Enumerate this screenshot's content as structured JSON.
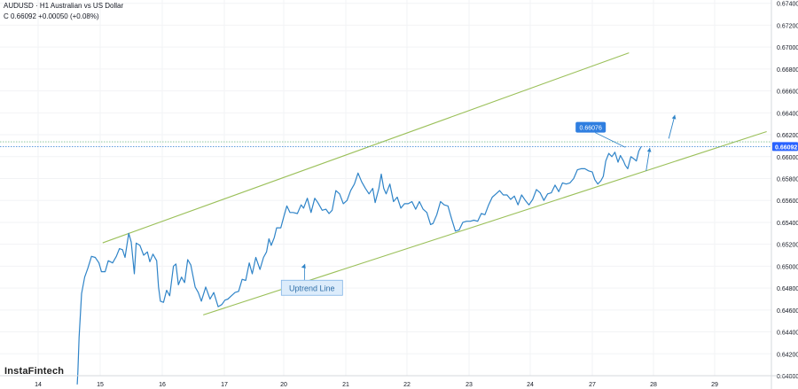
{
  "header": {
    "title": "AUDUSD · H1 Australian vs US Dollar",
    "ohlc": "C 0.66092 +0.00050 (+0.08%)"
  },
  "brand": {
    "name": "InstaFintech"
  },
  "colors": {
    "line": "#2f84c8",
    "channel": "#9bc05a",
    "price_badge": "#2962ff",
    "callout": "#2f7ee0",
    "annotation_fill": "#dcecfb",
    "annotation_border": "#7fb3e6",
    "grid": "#f2f3f5"
  },
  "chart_data": {
    "type": "line",
    "title": "AUDUSD · H1 Australian vs US Dollar",
    "xlabel": "",
    "ylabel": "",
    "x_ticks": [
      "14",
      "15",
      "16",
      "17",
      "20",
      "21",
      "22",
      "23",
      "24",
      "27",
      "28",
      "29"
    ],
    "x_index_range": [
      -0.5,
      11.5
    ],
    "y_ticks": [
      "0.64000",
      "0.64200",
      "0.64400",
      "0.64600",
      "0.64800",
      "0.65000",
      "0.65200",
      "0.65400",
      "0.65600",
      "0.65800",
      "0.66000",
      "0.66200",
      "0.66400",
      "0.66600",
      "0.66800",
      "0.67000",
      "0.67200",
      "0.67400"
    ],
    "ylim": [
      0.64,
      0.6743
    ],
    "grid": true,
    "last_price": "0.66092",
    "callout_price": "0.66076",
    "annotation": "Uptrend Line",
    "series": [
      {
        "values": [
          [
            0.63,
            0.6392
          ],
          [
            0.64,
            0.6403
          ],
          [
            0.66,
            0.6435
          ],
          [
            0.7,
            0.6475
          ],
          [
            0.75,
            0.649
          ],
          [
            0.8,
            0.6498
          ],
          [
            0.86,
            0.6509
          ],
          [
            0.92,
            0.6508
          ],
          [
            0.98,
            0.6503
          ],
          [
            1.02,
            0.6495
          ],
          [
            1.08,
            0.6495
          ],
          [
            1.13,
            0.6505
          ],
          [
            1.2,
            0.6503
          ],
          [
            1.26,
            0.6509
          ],
          [
            1.31,
            0.6516
          ],
          [
            1.36,
            0.6515
          ],
          [
            1.4,
            0.6508
          ],
          [
            1.43,
            0.6519
          ],
          [
            1.46,
            0.653
          ],
          [
            1.5,
            0.6522
          ],
          [
            1.55,
            0.6493
          ],
          [
            1.58,
            0.6521
          ],
          [
            1.64,
            0.6519
          ],
          [
            1.7,
            0.651
          ],
          [
            1.76,
            0.6513
          ],
          [
            1.8,
            0.6504
          ],
          [
            1.85,
            0.6511
          ],
          [
            1.91,
            0.6505
          ],
          [
            1.94,
            0.6481
          ],
          [
            1.97,
            0.6468
          ],
          [
            2.02,
            0.6467
          ],
          [
            2.07,
            0.6478
          ],
          [
            2.12,
            0.6473
          ],
          [
            2.18,
            0.65
          ],
          [
            2.22,
            0.6502
          ],
          [
            2.26,
            0.6483
          ],
          [
            2.31,
            0.649
          ],
          [
            2.36,
            0.6485
          ],
          [
            2.41,
            0.6506
          ],
          [
            2.46,
            0.6501
          ],
          [
            2.53,
            0.6481
          ],
          [
            2.58,
            0.6476
          ],
          [
            2.63,
            0.6468
          ],
          [
            2.7,
            0.6481
          ],
          [
            2.77,
            0.647
          ],
          [
            2.83,
            0.6476
          ],
          [
            2.9,
            0.6463
          ],
          [
            2.96,
            0.6465
          ],
          [
            3.01,
            0.6469
          ],
          [
            3.06,
            0.647
          ],
          [
            3.12,
            0.6473
          ],
          [
            3.18,
            0.6476
          ],
          [
            3.24,
            0.6477
          ],
          [
            3.3,
            0.6488
          ],
          [
            3.36,
            0.6487
          ],
          [
            3.42,
            0.6503
          ],
          [
            3.47,
            0.6493
          ],
          [
            3.53,
            0.6508
          ],
          [
            3.6,
            0.6497
          ],
          [
            3.66,
            0.6508
          ],
          [
            3.71,
            0.6513
          ],
          [
            3.75,
            0.6525
          ],
          [
            3.79,
            0.6519
          ],
          [
            3.84,
            0.6526
          ],
          [
            3.88,
            0.6535
          ],
          [
            3.95,
            0.6535
          ],
          [
            4.0,
            0.6545
          ],
          [
            4.05,
            0.6555
          ],
          [
            4.1,
            0.6549
          ],
          [
            4.15,
            0.6549
          ],
          [
            4.22,
            0.6548
          ],
          [
            4.28,
            0.6556
          ],
          [
            4.32,
            0.6553
          ],
          [
            4.38,
            0.6562
          ],
          [
            4.44,
            0.6549
          ],
          [
            4.5,
            0.6562
          ],
          [
            4.55,
            0.6558
          ],
          [
            4.62,
            0.6551
          ],
          [
            4.68,
            0.6552
          ],
          [
            4.73,
            0.6548
          ],
          [
            4.78,
            0.6551
          ],
          [
            4.84,
            0.6569
          ],
          [
            4.9,
            0.6566
          ],
          [
            4.96,
            0.6557
          ],
          [
            5.02,
            0.656
          ],
          [
            5.08,
            0.6569
          ],
          [
            5.14,
            0.6575
          ],
          [
            5.2,
            0.6585
          ],
          [
            5.26,
            0.6577
          ],
          [
            5.32,
            0.6571
          ],
          [
            5.38,
            0.6566
          ],
          [
            5.44,
            0.6571
          ],
          [
            5.48,
            0.6558
          ],
          [
            5.54,
            0.6571
          ],
          [
            5.58,
            0.6584
          ],
          [
            5.62,
            0.6571
          ],
          [
            5.66,
            0.6566
          ],
          [
            5.72,
            0.6575
          ],
          [
            5.78,
            0.6559
          ],
          [
            5.84,
            0.6563
          ],
          [
            5.9,
            0.6553
          ],
          [
            5.96,
            0.6557
          ],
          [
            6.02,
            0.6557
          ],
          [
            6.08,
            0.6559
          ],
          [
            6.14,
            0.6552
          ],
          [
            6.2,
            0.6559
          ],
          [
            6.26,
            0.6552
          ],
          [
            6.32,
            0.6549
          ],
          [
            6.38,
            0.6538
          ],
          [
            6.42,
            0.6539
          ],
          [
            6.48,
            0.6547
          ],
          [
            6.54,
            0.6559
          ],
          [
            6.6,
            0.6556
          ],
          [
            6.66,
            0.6555
          ],
          [
            6.72,
            0.6543
          ],
          [
            6.78,
            0.6532
          ],
          [
            6.84,
            0.6533
          ],
          [
            6.9,
            0.654
          ],
          [
            6.96,
            0.6541
          ],
          [
            7.02,
            0.6541
          ],
          [
            7.08,
            0.6542
          ],
          [
            7.14,
            0.6541
          ],
          [
            7.2,
            0.6548
          ],
          [
            7.26,
            0.6547
          ],
          [
            7.32,
            0.6556
          ],
          [
            7.38,
            0.6563
          ],
          [
            7.44,
            0.6566
          ],
          [
            7.5,
            0.6569
          ],
          [
            7.56,
            0.6565
          ],
          [
            7.62,
            0.6565
          ],
          [
            7.68,
            0.6561
          ],
          [
            7.74,
            0.6564
          ],
          [
            7.8,
            0.6556
          ],
          [
            7.86,
            0.6565
          ],
          [
            7.92,
            0.656
          ],
          [
            7.98,
            0.6556
          ],
          [
            8.04,
            0.6561
          ],
          [
            8.1,
            0.657
          ],
          [
            8.16,
            0.6567
          ],
          [
            8.22,
            0.656
          ],
          [
            8.28,
            0.6566
          ],
          [
            8.34,
            0.6567
          ],
          [
            8.4,
            0.6574
          ],
          [
            8.46,
            0.6568
          ],
          [
            8.52,
            0.6576
          ],
          [
            8.58,
            0.6575
          ],
          [
            8.64,
            0.6576
          ],
          [
            8.7,
            0.658
          ],
          [
            8.76,
            0.6588
          ],
          [
            8.82,
            0.6589
          ],
          [
            8.88,
            0.6589
          ],
          [
            8.94,
            0.6587
          ],
          [
            9.0,
            0.6586
          ],
          [
            9.04,
            0.6579
          ],
          [
            9.09,
            0.6575
          ],
          [
            9.14,
            0.6578
          ],
          [
            9.18,
            0.6582
          ],
          [
            9.22,
            0.6596
          ],
          [
            9.27,
            0.6603
          ],
          [
            9.32,
            0.66
          ],
          [
            9.37,
            0.6604
          ],
          [
            9.42,
            0.6595
          ],
          [
            9.46,
            0.6601
          ],
          [
            9.51,
            0.6596
          ],
          [
            9.54,
            0.6592
          ],
          [
            9.58,
            0.6589
          ],
          [
            9.63,
            0.66
          ],
          [
            9.68,
            0.6598
          ],
          [
            9.72,
            0.6596
          ],
          [
            9.76,
            0.6605
          ],
          [
            9.8,
            0.66092
          ]
        ]
      }
    ]
  }
}
